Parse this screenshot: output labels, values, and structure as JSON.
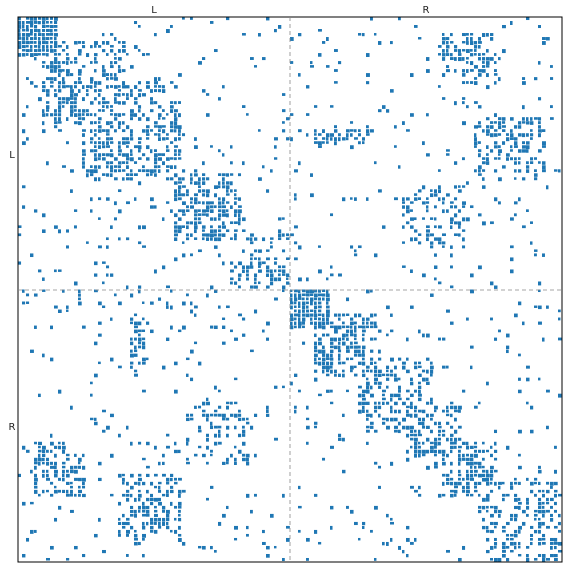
{
  "chart_data": {
    "type": "heatmap",
    "title": "",
    "xlabel": "",
    "ylabel": "",
    "grid": false,
    "x_groups": [
      "L",
      "R"
    ],
    "y_groups": [
      "L",
      "R"
    ],
    "group_boundary": 0.5,
    "color": "#1f77b4",
    "divider_color": "#888888",
    "blocks": [
      {
        "x": [
          0.0,
          0.07
        ],
        "y": [
          0.0,
          0.07
        ],
        "density": 0.95
      },
      {
        "x": [
          0.07,
          0.2
        ],
        "y": [
          0.05,
          0.18
        ],
        "density": 0.45
      },
      {
        "x": [
          0.12,
          0.3
        ],
        "y": [
          0.15,
          0.3
        ],
        "density": 0.45
      },
      {
        "x": [
          0.29,
          0.41
        ],
        "y": [
          0.29,
          0.41
        ],
        "density": 0.55
      },
      {
        "x": [
          0.39,
          0.5
        ],
        "y": [
          0.4,
          0.5
        ],
        "density": 0.4
      },
      {
        "x": [
          0.5,
          0.56
        ],
        "y": [
          0.5,
          0.57
        ],
        "density": 0.9
      },
      {
        "x": [
          0.55,
          0.66
        ],
        "y": [
          0.55,
          0.66
        ],
        "density": 0.45
      },
      {
        "x": [
          0.63,
          0.75
        ],
        "y": [
          0.64,
          0.76
        ],
        "density": 0.4
      },
      {
        "x": [
          0.72,
          0.8
        ],
        "y": [
          0.73,
          0.81
        ],
        "density": 0.45
      },
      {
        "x": [
          0.78,
          0.88
        ],
        "y": [
          0.8,
          0.88
        ],
        "density": 0.55
      },
      {
        "x": [
          0.86,
          1.0
        ],
        "y": [
          0.86,
          1.0
        ],
        "density": 0.4
      },
      {
        "x": [
          0.78,
          0.88
        ],
        "y": [
          0.03,
          0.1
        ],
        "density": 0.55
      },
      {
        "x": [
          0.84,
          0.97
        ],
        "y": [
          0.19,
          0.28
        ],
        "density": 0.4
      },
      {
        "x": [
          0.73,
          0.82
        ],
        "y": [
          0.31,
          0.42
        ],
        "density": 0.35
      },
      {
        "x": [
          0.55,
          0.64
        ],
        "y": [
          0.21,
          0.23
        ],
        "density": 0.6
      },
      {
        "x": [
          0.03,
          0.12
        ],
        "y": [
          0.8,
          0.88
        ],
        "density": 0.35
      },
      {
        "x": [
          0.22,
          0.3
        ],
        "y": [
          0.84,
          0.96
        ],
        "density": 0.4
      },
      {
        "x": [
          0.33,
          0.42
        ],
        "y": [
          0.71,
          0.81
        ],
        "density": 0.3
      },
      {
        "x": [
          0.5,
          0.53
        ],
        "y": [
          0.0,
          0.5
        ],
        "density": 0.08
      },
      {
        "x": [
          0.0,
          0.5
        ],
        "y": [
          0.49,
          0.52
        ],
        "density": 0.08
      }
    ],
    "background_density": 0.04
  }
}
